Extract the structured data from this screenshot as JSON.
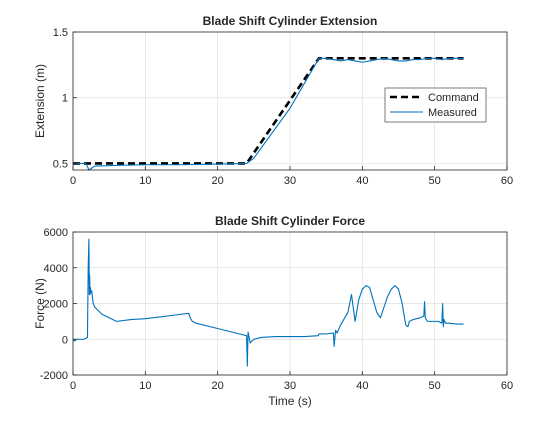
{
  "chart_data": [
    {
      "type": "line",
      "title": "Blade Shift Cylinder Extension",
      "xlabel": "",
      "ylabel": "Extension (m)",
      "xlim": [
        0,
        60
      ],
      "ylim": [
        0.45,
        1.5
      ],
      "xticks": [
        0,
        10,
        20,
        30,
        40,
        50,
        60
      ],
      "yticks": [
        0.5,
        1,
        1.5
      ],
      "grid": true,
      "legend": "right",
      "series": [
        {
          "name": "Command",
          "color": "#000000",
          "style": "dashed",
          "x": [
            0,
            24,
            34,
            54
          ],
          "y": [
            0.5,
            0.5,
            1.3,
            1.3
          ]
        },
        {
          "name": "Measured",
          "color": "#0072bd",
          "style": "solid",
          "x": [
            0,
            1.8,
            2.2,
            3,
            6,
            10,
            15,
            20,
            24,
            24.5,
            25,
            30,
            34,
            35,
            36,
            37,
            38,
            39,
            40,
            41,
            42,
            43,
            44,
            45,
            46,
            47,
            48,
            49,
            50,
            51,
            52,
            53,
            54
          ],
          "y": [
            0.5,
            0.5,
            0.45,
            0.48,
            0.485,
            0.49,
            0.49,
            0.495,
            0.5,
            0.52,
            0.54,
            0.92,
            1.3,
            1.3,
            1.29,
            1.28,
            1.29,
            1.28,
            1.27,
            1.28,
            1.29,
            1.3,
            1.29,
            1.28,
            1.28,
            1.29,
            1.29,
            1.3,
            1.3,
            1.29,
            1.3,
            1.3,
            1.3
          ]
        }
      ]
    },
    {
      "type": "line",
      "title": "Blade Shift Cylinder Force",
      "xlabel": "Time (s)",
      "ylabel": "Force (N)",
      "xlim": [
        0,
        60
      ],
      "ylim": [
        -2000,
        6000
      ],
      "xticks": [
        0,
        10,
        20,
        30,
        40,
        50,
        60
      ],
      "yticks": [
        -2000,
        0,
        2000,
        4000,
        6000
      ],
      "grid": true,
      "series": [
        {
          "name": "",
          "color": "#0072bd",
          "style": "solid",
          "x": [
            0,
            0.2,
            0.5,
            1,
            1.5,
            2,
            2.1,
            2.2,
            2.25,
            2.3,
            2.35,
            2.4,
            2.5,
            2.6,
            2.7,
            2.8,
            3,
            3.5,
            4,
            5,
            6,
            8,
            10,
            12,
            14,
            16,
            16.2,
            16.5,
            17,
            20,
            22,
            23,
            24,
            24.1,
            24.2,
            24.5,
            25,
            26,
            28,
            30,
            32,
            33.9,
            34,
            35,
            36,
            36.1,
            36.3,
            36.5,
            37,
            38,
            38.5,
            39,
            39.5,
            40,
            40.5,
            41,
            42,
            42.5,
            43,
            43.5,
            44,
            44.5,
            45,
            45.5,
            46,
            46.3,
            46.5,
            47,
            48,
            48.5,
            48.6,
            48.7,
            49,
            50,
            50.5,
            51,
            51.1,
            51.2,
            51.3,
            51.5,
            52,
            53,
            54
          ],
          "y": [
            0,
            -100,
            0,
            0,
            0,
            100,
            4000,
            5600,
            2500,
            3600,
            2500,
            2900,
            2600,
            2700,
            2300,
            2000,
            1800,
            1600,
            1400,
            1200,
            1000,
            1100,
            1150,
            1250,
            1350,
            1450,
            1200,
            1000,
            900,
            600,
            400,
            300,
            200,
            -1500,
            400,
            -200,
            0,
            100,
            150,
            150,
            150,
            200,
            300,
            300,
            350,
            -400,
            500,
            350,
            800,
            1500,
            2500,
            1000,
            2200,
            2800,
            3000,
            2900,
            1500,
            1200,
            1800,
            2400,
            2800,
            3000,
            2800,
            2000,
            800,
            700,
            1000,
            1100,
            1200,
            1300,
            2100,
            1200,
            1000,
            1000,
            1000,
            900,
            2000,
            700,
            1100,
            900,
            900,
            850,
            850
          ]
        }
      ]
    }
  ]
}
